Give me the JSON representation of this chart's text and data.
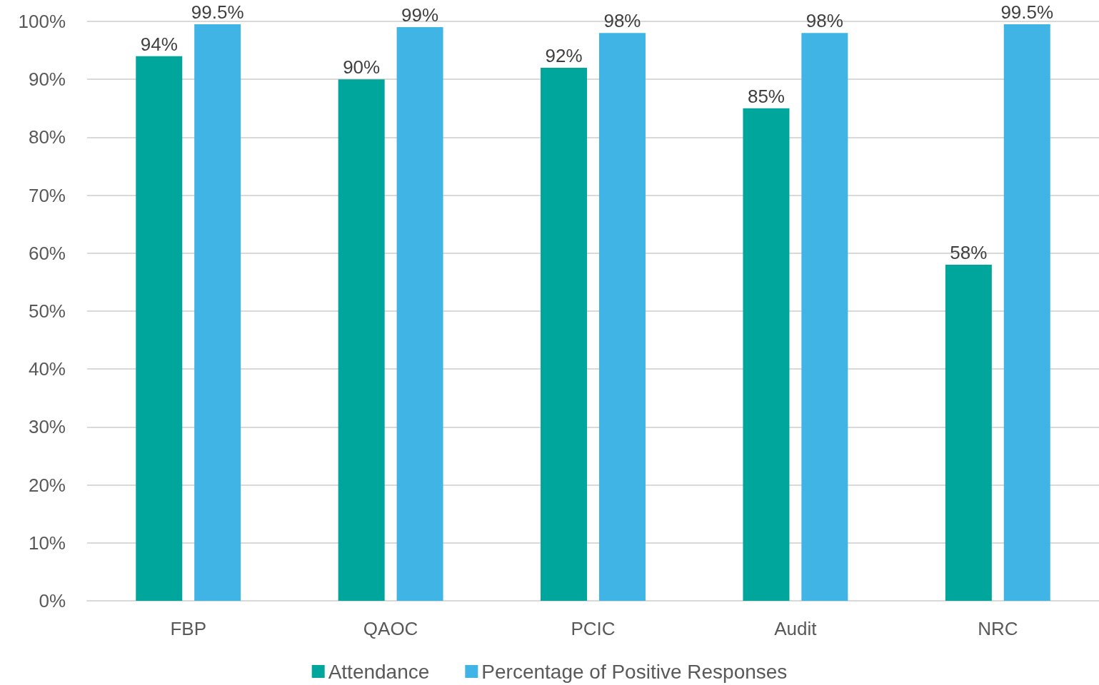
{
  "chart_data": {
    "type": "bar",
    "categories": [
      "FBP",
      "QAOC",
      "PCIC",
      "Audit",
      "NRC"
    ],
    "series": [
      {
        "name": "Attendance",
        "color": "#00a59b",
        "values": [
          94,
          90,
          92,
          85,
          58
        ],
        "value_labels": [
          "94%",
          "90%",
          "92%",
          "85%",
          "58%"
        ]
      },
      {
        "name": "Percentage of Positive Responses",
        "color": "#41b4e6",
        "values": [
          99.5,
          99,
          98,
          98,
          99.5
        ],
        "value_labels": [
          "99.5%",
          "99%",
          "98%",
          "98%",
          "99.5%"
        ]
      }
    ],
    "ylim": [
      0,
      100
    ],
    "yticks": [
      {
        "value": 0,
        "label": "0%"
      },
      {
        "value": 10,
        "label": "10%"
      },
      {
        "value": 20,
        "label": "20%"
      },
      {
        "value": 30,
        "label": "30%"
      },
      {
        "value": 40,
        "label": "40%"
      },
      {
        "value": 50,
        "label": "50%"
      },
      {
        "value": 60,
        "label": "60%"
      },
      {
        "value": 70,
        "label": "70%"
      },
      {
        "value": 80,
        "label": "80%"
      },
      {
        "value": 90,
        "label": "90%"
      },
      {
        "value": 100,
        "label": "100%"
      }
    ],
    "grid": "y",
    "legend": "bottom"
  }
}
